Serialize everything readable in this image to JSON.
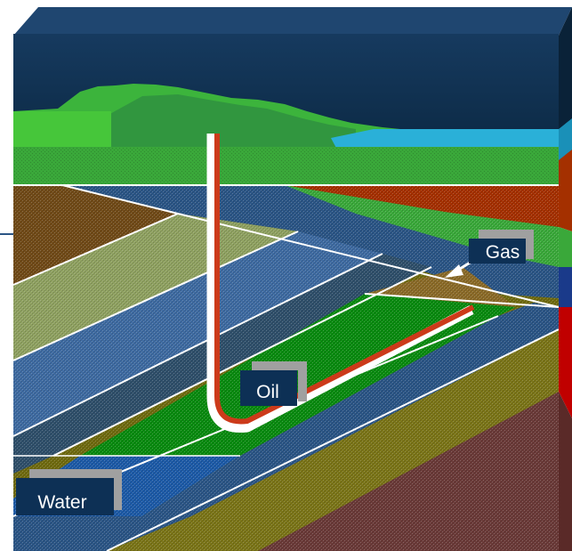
{
  "labels": {
    "gas": "Gas",
    "oil": "Oil",
    "water": "Water"
  },
  "colors": {
    "sky": "#0f3050",
    "hills": "#3cb43c",
    "lake": "#2ab0d8",
    "soil_olive": "#6f6a10",
    "soil_brown": "#704a18",
    "rock_blue": "#2b5585",
    "rock_sage": "#8ea060",
    "oil_green": "#0a8a10",
    "gas_gold": "#8a6a28",
    "water_blue": "#1d5aa6",
    "red_layer": "#a43000",
    "maroon_layer": "#6a3a38",
    "well_pipe": "#cc3a1a",
    "label_box": "#0d3055",
    "label_shadow": "#a0a0a0"
  }
}
